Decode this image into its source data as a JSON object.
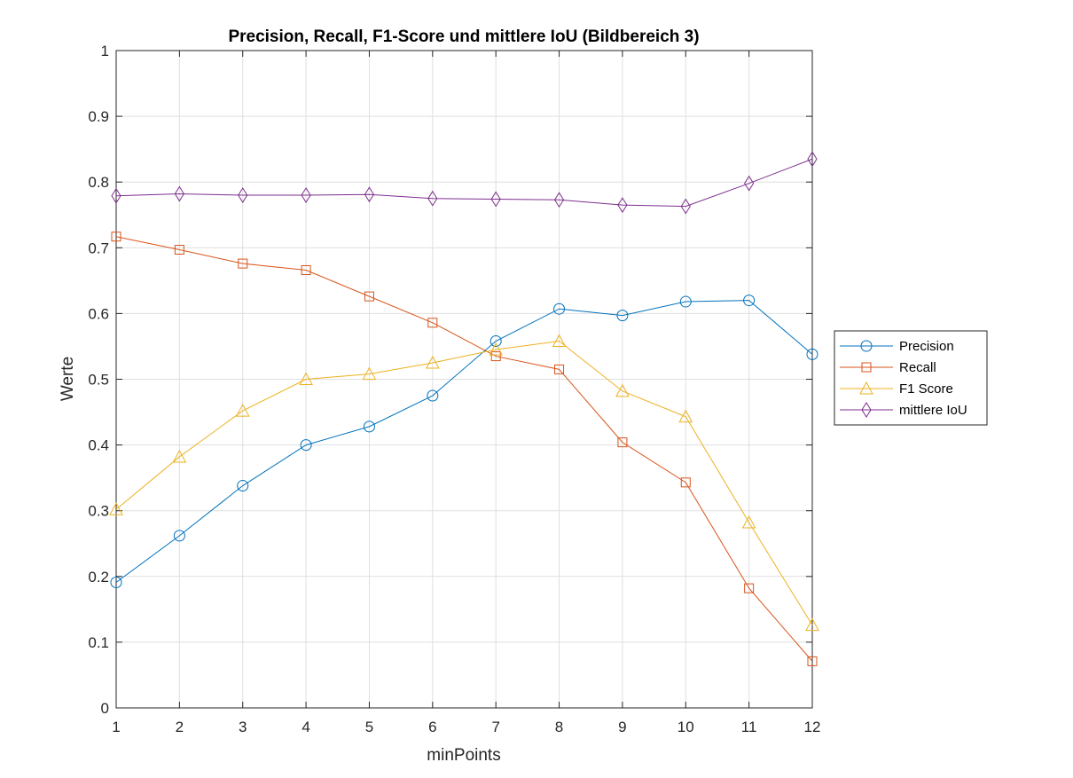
{
  "chart_data": {
    "type": "line",
    "title": "Precision, Recall, F1-Score und mittlere IoU (Bildbereich 3)",
    "xlabel": "minPoints",
    "ylabel": "Werte",
    "x": [
      1,
      2,
      3,
      4,
      5,
      6,
      7,
      8,
      9,
      10,
      11,
      12
    ],
    "xlim": [
      1,
      12
    ],
    "ylim": [
      0,
      1
    ],
    "xticks": [
      "1",
      "2",
      "3",
      "4",
      "5",
      "6",
      "7",
      "8",
      "9",
      "10",
      "11",
      "12"
    ],
    "yticks": [
      "0",
      "0.1",
      "0.2",
      "0.3",
      "0.4",
      "0.5",
      "0.6",
      "0.7",
      "0.8",
      "0.9",
      "1"
    ],
    "grid": true,
    "legend_position": "outside-right",
    "series": [
      {
        "name": "Precision",
        "color": "#0072BD",
        "marker": "circle",
        "values": [
          0.191,
          0.262,
          0.338,
          0.4,
          0.428,
          0.475,
          0.558,
          0.607,
          0.597,
          0.618,
          0.62,
          0.538
        ]
      },
      {
        "name": "Recall",
        "color": "#D95319",
        "marker": "square",
        "values": [
          0.717,
          0.697,
          0.676,
          0.666,
          0.626,
          0.586,
          0.535,
          0.515,
          0.404,
          0.343,
          0.182,
          0.071
        ]
      },
      {
        "name": "F1 Score",
        "color": "#EDB120",
        "marker": "triangle",
        "values": [
          0.302,
          0.382,
          0.452,
          0.5,
          0.508,
          0.525,
          0.545,
          0.558,
          0.482,
          0.443,
          0.282,
          0.126
        ]
      },
      {
        "name": "mittlere IoU",
        "color": "#7E2F8E",
        "marker": "diamond",
        "values": [
          0.779,
          0.782,
          0.78,
          0.78,
          0.781,
          0.775,
          0.774,
          0.773,
          0.765,
          0.763,
          0.798,
          0.835
        ]
      }
    ]
  }
}
